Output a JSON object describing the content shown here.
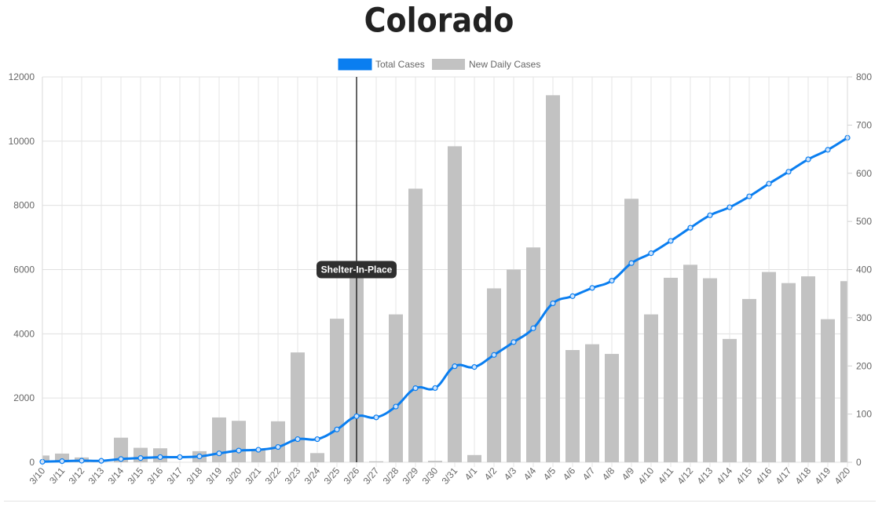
{
  "chart_data": {
    "type": "bar+line",
    "title": "Colorado",
    "categories": [
      "3/10",
      "3/11",
      "3/12",
      "3/13",
      "3/14",
      "3/15",
      "3/16",
      "3/17",
      "3/18",
      "3/19",
      "3/20",
      "3/21",
      "3/22",
      "3/23",
      "3/24",
      "3/25",
      "3/26",
      "3/27",
      "3/28",
      "3/29",
      "3/30",
      "3/31",
      "4/1",
      "4/2",
      "4/3",
      "4/4",
      "4/5",
      "4/6",
      "4/7",
      "4/8",
      "4/9",
      "4/10",
      "4/11",
      "4/12",
      "4/13",
      "4/14",
      "4/15",
      "4/16",
      "4/17",
      "4/18",
      "4/19",
      "4/20"
    ],
    "series": [
      {
        "name": "Total Cases",
        "type": "line",
        "axis": "left",
        "color": "#0a7ef0",
        "values": [
          17,
          34,
          49,
          45,
          101,
          131,
          160,
          160,
          183,
          277,
          364,
          390,
          475,
          720,
          720,
          1021,
          1433,
          1397,
          1734,
          2307,
          2311,
          2990,
          2966,
          3342,
          3742,
          4173,
          4950,
          5172,
          5429,
          5655,
          6202,
          6510,
          6893,
          7303,
          7691,
          7941,
          8280,
          8675,
          9047,
          9433,
          9730,
          10106
        ]
      },
      {
        "name": "New Daily Cases",
        "type": "bar",
        "axis": "right",
        "color": "#c2c2c2",
        "values": [
          14,
          18,
          10,
          0,
          51,
          30,
          29,
          0,
          23,
          93,
          86,
          26,
          85,
          228,
          19,
          298,
          400,
          2,
          307,
          568,
          3,
          656,
          15,
          361,
          400,
          446,
          762,
          233,
          245,
          225,
          547,
          307,
          383,
          410,
          382,
          256,
          339,
          395,
          372,
          386,
          297,
          376
        ]
      }
    ],
    "y_left": {
      "min": 0,
      "max": 12000,
      "ticks": [
        0,
        2000,
        4000,
        6000,
        8000,
        10000,
        12000
      ]
    },
    "y_right": {
      "min": 0,
      "max": 800,
      "ticks": [
        0,
        100,
        200,
        300,
        400,
        500,
        600,
        700,
        800
      ]
    },
    "legend_position": "top-center",
    "grid": true,
    "annotation": {
      "at": "3/26",
      "label": "Shelter-In-Place",
      "line_color": "#000000"
    }
  }
}
